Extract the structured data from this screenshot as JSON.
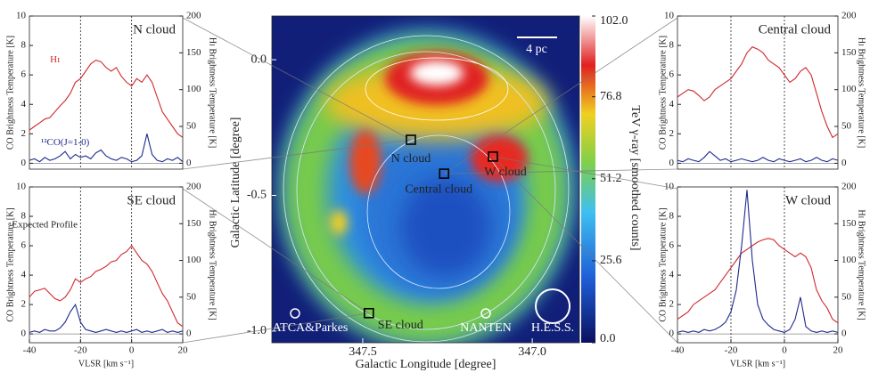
{
  "chart_data": [
    {
      "type": "line",
      "title": "N cloud",
      "annotations": [
        "Hɪ",
        "¹²CO(J=1-0)"
      ],
      "ylabel": "CO Brightness Temperature [K]",
      "y2label": "Hɪ Brightness Temperature [K]",
      "x": [
        -40,
        -38,
        -36,
        -34,
        -32,
        -30,
        -28,
        -26,
        -24,
        -22,
        -20,
        -18,
        -16,
        -14,
        -12,
        -10,
        -8,
        -6,
        -4,
        -2,
        0,
        2,
        4,
        6,
        8,
        10,
        12,
        14,
        16,
        18,
        20
      ],
      "xlim": [
        -40,
        20
      ],
      "ylim": [
        -0.4,
        10
      ],
      "y2lim": [
        -8,
        200
      ],
      "yticks": [
        0,
        2,
        4,
        6,
        8,
        10
      ],
      "y2ticks": [
        0,
        50,
        100,
        150,
        200
      ],
      "vlines": [
        -20,
        0
      ],
      "series": [
        {
          "name": "Hɪ",
          "color": "#d0282c",
          "axis": "y2",
          "values": [
            45,
            50,
            55,
            60,
            62,
            70,
            78,
            85,
            95,
            110,
            115,
            125,
            135,
            140,
            138,
            130,
            125,
            130,
            118,
            110,
            105,
            115,
            110,
            120,
            110,
            90,
            70,
            60,
            50,
            40,
            35
          ]
        },
        {
          "name": "¹²CO(J=1-0)",
          "color": "#1c2a8c",
          "values": [
            0.2,
            0.3,
            0.1,
            0.4,
            0.2,
            0.3,
            0.5,
            0.8,
            0.3,
            0.6,
            0.4,
            0.5,
            0.3,
            0.7,
            0.9,
            0.5,
            0.3,
            0.2,
            0.4,
            0.3,
            0.1,
            0.2,
            0.5,
            2.0,
            0.6,
            0.2,
            0.1,
            0.3,
            0.2,
            0.4,
            0.1
          ]
        }
      ]
    },
    {
      "type": "line",
      "title": "SE cloud",
      "annotations": [
        "Expected Profile"
      ],
      "ylabel": "CO Brightness Temperature [K]",
      "y2label": "Hɪ Brightness Temperature [K]",
      "xlabel": "VLSR [km s⁻¹]",
      "x": [
        -40,
        -38,
        -36,
        -34,
        -32,
        -30,
        -28,
        -26,
        -24,
        -22,
        -20,
        -18,
        -16,
        -14,
        -12,
        -10,
        -8,
        -6,
        -4,
        -2,
        0,
        2,
        4,
        6,
        8,
        10,
        12,
        14,
        16,
        18,
        20
      ],
      "xlim": [
        -40,
        20
      ],
      "ylim": [
        -0.6,
        10
      ],
      "y2lim": [
        -12,
        200
      ],
      "xticks": [
        -40,
        -20,
        0,
        20
      ],
      "yticks": [
        0,
        2,
        4,
        6,
        8,
        10
      ],
      "y2ticks": [
        0,
        50,
        100,
        150,
        200
      ],
      "vlines": [
        -20,
        0
      ],
      "series": [
        {
          "name": "Hɪ",
          "color": "#d0282c",
          "axis": "y2",
          "values": [
            50,
            58,
            60,
            62,
            55,
            48,
            45,
            50,
            60,
            75,
            70,
            75,
            78,
            85,
            88,
            92,
            98,
            100,
            108,
            112,
            120,
            110,
            100,
            95,
            85,
            70,
            55,
            45,
            30,
            15,
            10
          ]
        },
        {
          "name": "¹²CO(J=1-0)",
          "color": "#1c2a8c",
          "values": [
            0.1,
            0.2,
            0.1,
            0.3,
            0.2,
            0.2,
            0.4,
            0.8,
            1.5,
            2.0,
            0.8,
            0.3,
            0.2,
            0.1,
            0.2,
            0.3,
            0.2,
            0.1,
            0.2,
            0.1,
            0.2,
            0.3,
            0.1,
            0.2,
            0.1,
            0.2,
            0.3,
            0.1,
            0.2,
            0.1,
            0.2
          ]
        }
      ]
    },
    {
      "type": "line",
      "title": "Central cloud",
      "annotations": [],
      "ylabel": "CO Brightness Temperature [K]",
      "y2label": "Hɪ Brightness Temperature [K]",
      "x": [
        -40,
        -38,
        -36,
        -34,
        -32,
        -30,
        -28,
        -26,
        -24,
        -22,
        -20,
        -18,
        -16,
        -14,
        -12,
        -10,
        -8,
        -6,
        -4,
        -2,
        0,
        2,
        4,
        6,
        8,
        10,
        12,
        14,
        16,
        18,
        20
      ],
      "xlim": [
        -40,
        20
      ],
      "ylim": [
        -0.4,
        10
      ],
      "y2lim": [
        -8,
        200
      ],
      "yticks": [
        0,
        2,
        4,
        6,
        8,
        10
      ],
      "y2ticks": [
        0,
        50,
        100,
        150,
        200
      ],
      "vlines": [
        -20,
        0
      ],
      "series": [
        {
          "name": "Hɪ",
          "color": "#d0282c",
          "axis": "y2",
          "values": [
            90,
            95,
            100,
            98,
            92,
            85,
            90,
            100,
            105,
            110,
            115,
            125,
            135,
            150,
            158,
            155,
            150,
            140,
            135,
            130,
            120,
            110,
            115,
            125,
            130,
            120,
            95,
            70,
            50,
            35,
            40
          ]
        },
        {
          "name": "¹²CO(J=1-0)",
          "color": "#1c2a8c",
          "values": [
            0.2,
            0.1,
            0.3,
            0.2,
            0.1,
            0.4,
            0.8,
            0.5,
            0.2,
            0.3,
            0.1,
            0.2,
            0.3,
            0.2,
            0.1,
            0.2,
            0.4,
            0.2,
            0.1,
            0.3,
            0.2,
            0.1,
            0.2,
            0.3,
            0.1,
            0.2,
            0.4,
            0.2,
            0.1,
            0.3,
            0.2
          ]
        }
      ]
    },
    {
      "type": "line",
      "title": "W cloud",
      "annotations": [],
      "ylabel": "CO Brightness Temperature [K]",
      "y2label": "Hɪ Brightness Temperature [K]",
      "xlabel": "VLSR [km s⁻¹]",
      "x": [
        -40,
        -38,
        -36,
        -34,
        -32,
        -30,
        -28,
        -26,
        -24,
        -22,
        -20,
        -18,
        -16,
        -14,
        -12,
        -10,
        -8,
        -6,
        -4,
        -2,
        0,
        2,
        4,
        6,
        8,
        10,
        12,
        14,
        16,
        18,
        20
      ],
      "xlim": [
        -40,
        20
      ],
      "ylim": [
        -0.6,
        10
      ],
      "y2lim": [
        -12,
        200
      ],
      "xticks": [
        -40,
        -20,
        0,
        20
      ],
      "yticks": [
        0,
        2,
        4,
        6,
        8,
        10
      ],
      "y2ticks": [
        0,
        50,
        100,
        150,
        200
      ],
      "vlines": [
        -20,
        0
      ],
      "series": [
        {
          "name": "Hɪ",
          "color": "#d0282c",
          "axis": "y2",
          "values": [
            20,
            25,
            30,
            40,
            45,
            50,
            55,
            60,
            70,
            80,
            90,
            100,
            110,
            115,
            120,
            125,
            128,
            130,
            128,
            120,
            115,
            110,
            105,
            110,
            105,
            90,
            60,
            45,
            35,
            20,
            15
          ]
        },
        {
          "name": "¹²CO(J=1-0)",
          "color": "#1c2a8c",
          "values": [
            0.1,
            0.2,
            0.1,
            0.2,
            0.1,
            0.3,
            0.2,
            0.3,
            0.5,
            0.8,
            1.5,
            3.0,
            6.0,
            9.8,
            5.0,
            2.0,
            1.0,
            0.6,
            0.3,
            0.2,
            0.1,
            0.3,
            1.0,
            2.5,
            0.5,
            0.2,
            0.1,
            0.2,
            0.1,
            0.2,
            0.1
          ]
        }
      ]
    },
    {
      "type": "map",
      "xlabel": "Galactic Longitude [degree]",
      "ylabel": "Galactic Latitude [degree]",
      "xlim": [
        347.768,
        346.861
      ],
      "ylim": [
        -1.043,
        0.161
      ],
      "xticks": [
        347.5,
        {
          "value": 347,
          "label": "347.0"
        }
      ],
      "yticks": [
        {
          "value": 0,
          "label": "0.0"
        },
        -0.5,
        {
          "value": -1,
          "label": "-1.0"
        }
      ],
      "colorbar": {
        "label": "TeV γ-ray [smoothed counts]",
        "lim": [
          0,
          102
        ],
        "ticks": [
          {
            "value": 0,
            "label": "0.0"
          },
          25.6,
          51.2,
          76.8,
          {
            "value": 102,
            "label": "102.0"
          }
        ]
      },
      "regions": [
        {
          "name": "N cloud",
          "l": 347.358,
          "b": -0.295
        },
        {
          "name": "SE cloud",
          "l": 347.482,
          "b": -0.934
        },
        {
          "name": "Central cloud",
          "l": 347.26,
          "b": -0.42
        },
        {
          "name": "W cloud",
          "l": 347.116,
          "b": -0.357
        }
      ],
      "beams": [
        "ATCA&Parkes",
        "NANTEN",
        "H.E.S.S."
      ],
      "scale_bar": "4 pc"
    }
  ]
}
